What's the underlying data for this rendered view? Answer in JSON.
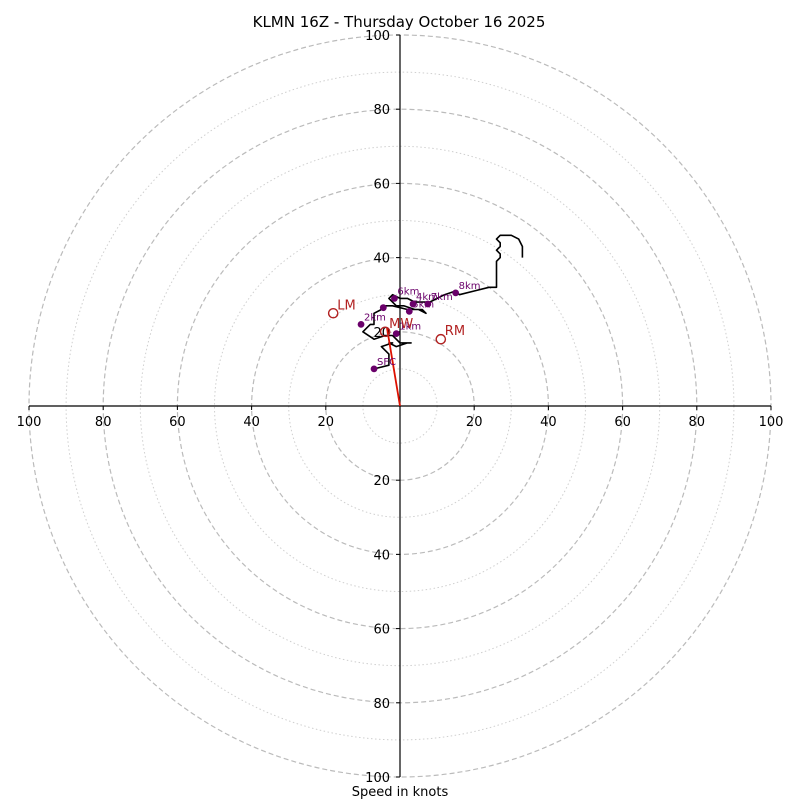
{
  "chart_data": {
    "type": "hodograph",
    "title": "KLMN 16Z - Thursday October 16 2025",
    "xlabel": "Speed in knots",
    "rmax": 100,
    "major_rings": [
      20,
      40,
      60,
      80,
      100
    ],
    "minor_rings": [
      10,
      30,
      50,
      70,
      90
    ],
    "tick_labels": {
      "top": [
        "20",
        "40",
        "60",
        "80",
        "100"
      ],
      "bottom": [
        "20",
        "40",
        "60",
        "80",
        "100"
      ],
      "left": [
        "20",
        "40",
        "60",
        "80",
        "100"
      ],
      "right": [
        "20",
        "40",
        "60",
        "80",
        "100"
      ]
    },
    "tick_values": [
      20,
      40,
      60,
      80,
      100
    ],
    "hodograph_trace": [
      [
        -7,
        10
      ],
      [
        -3,
        11
      ],
      [
        -3,
        14
      ],
      [
        -5,
        16
      ],
      [
        -2,
        17
      ],
      [
        -3,
        17
      ],
      [
        -1,
        16
      ],
      [
        2,
        17
      ],
      [
        3,
        17
      ],
      [
        0,
        17
      ],
      [
        -2,
        19
      ],
      [
        -4,
        19
      ],
      [
        -7,
        18
      ],
      [
        -10,
        20
      ],
      [
        -9,
        21
      ],
      [
        -8,
        22
      ],
      [
        -7,
        22
      ],
      [
        -7,
        25
      ],
      [
        -5,
        26
      ],
      [
        -5,
        27
      ],
      [
        -2,
        27
      ],
      [
        2,
        26
      ],
      [
        5,
        26
      ],
      [
        7,
        25
      ],
      [
        6,
        26
      ],
      [
        4,
        26
      ],
      [
        1,
        27
      ],
      [
        -1,
        27
      ],
      [
        -3,
        29
      ],
      [
        -2,
        30
      ],
      [
        0,
        29
      ],
      [
        2,
        29
      ],
      [
        4,
        28
      ],
      [
        6,
        28
      ],
      [
        8,
        28
      ],
      [
        10,
        29
      ],
      [
        12,
        30
      ],
      [
        15,
        31
      ],
      [
        16,
        30
      ],
      [
        20,
        31
      ],
      [
        24,
        32
      ],
      [
        26,
        32
      ],
      [
        26,
        34
      ],
      [
        26,
        37
      ],
      [
        26,
        39
      ],
      [
        27,
        40
      ],
      [
        27,
        41
      ],
      [
        26,
        42
      ],
      [
        27,
        43
      ],
      [
        27,
        44
      ],
      [
        26,
        45
      ],
      [
        27,
        46
      ],
      [
        28,
        46
      ],
      [
        30,
        46
      ],
      [
        32,
        45
      ],
      [
        33,
        43
      ],
      [
        33,
        41
      ],
      [
        33,
        40
      ]
    ],
    "height_markers": [
      {
        "label": "SFC",
        "u": -7,
        "v": 10,
        "show_label": true
      },
      {
        "label": "1km",
        "u": -1,
        "v": 19.5,
        "show_label": true
      },
      {
        "label": "2km",
        "u": -10.5,
        "v": 22,
        "show_label": true
      },
      {
        "label": "3km",
        "u": -4.5,
        "v": 26.5,
        "show_label": false
      },
      {
        "label": "4km",
        "u": 3.5,
        "v": 27.5,
        "show_label": true
      },
      {
        "label": "5km",
        "u": 2.5,
        "v": 25.5,
        "show_label": true
      },
      {
        "label": "6km",
        "u": -1.5,
        "v": 29,
        "show_label": true
      },
      {
        "label": "7km",
        "u": 7.5,
        "v": 27.5,
        "show_label": true
      },
      {
        "label": "8km",
        "u": 15,
        "v": 30.5,
        "show_label": true
      }
    ],
    "motion_markers": [
      {
        "label": "LM",
        "u": -18,
        "v": 25
      },
      {
        "label": "MW",
        "u": -4,
        "v": 20
      },
      {
        "label": "RM",
        "u": 11,
        "v": 18
      }
    ],
    "motion_vector": {
      "from_u": 0,
      "from_v": 0,
      "to_u": -3.5,
      "to_v": 21
    },
    "colors": {
      "trace": "#000000",
      "height_marker": "#6a006a",
      "motion_marker": "#b22222",
      "motion_vector": "#dd1100",
      "grid": "#bbbbbb",
      "axes": "#000000"
    }
  }
}
